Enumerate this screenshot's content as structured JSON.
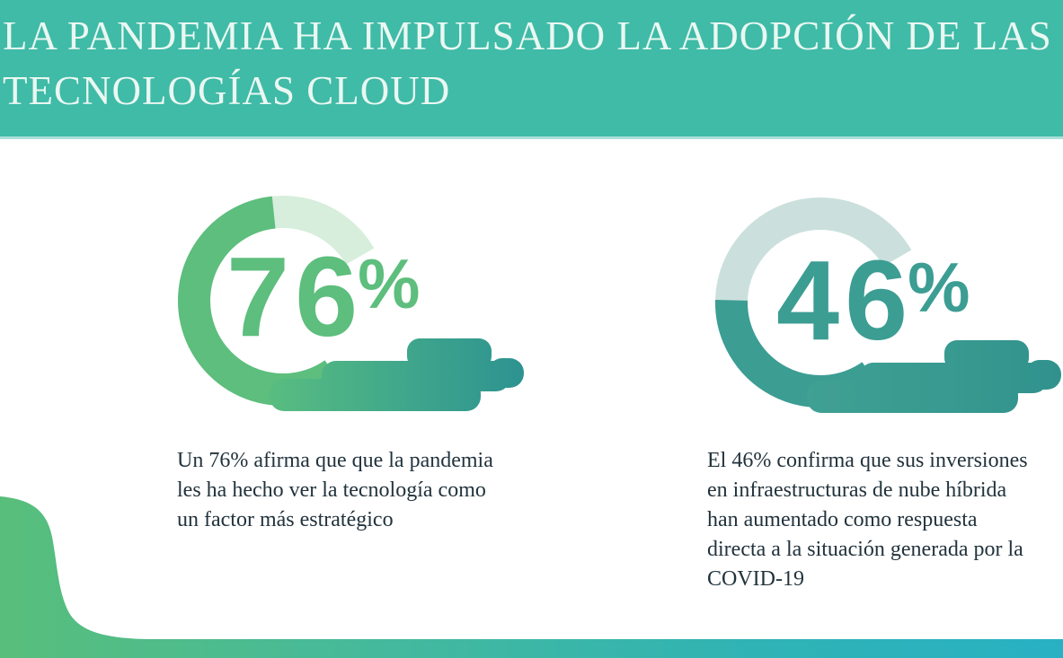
{
  "header": {
    "title_line1": "LA PANDEMIA HA IMPULSADO LA ADOPCIÓN DE LAS",
    "title_line2": "TECNOLOGÍAS CLOUD"
  },
  "charts": [
    {
      "value": 76,
      "value_label": "76",
      "percent_symbol": "%",
      "caption": "Un 76% afirma que que la pandemia\nles ha hecho ver la tecnología como\nun factor más estratégico",
      "colors": {
        "fill": "#5DBE7D",
        "track": "#D7EEDC",
        "cloud_from": "#58BD80",
        "cloud_mid": "#3FA68C",
        "cloud_to": "#2E9390"
      }
    },
    {
      "value": 46,
      "value_label": "46",
      "percent_symbol": "%",
      "caption": "El 46% confirma que sus inversiones\nen infraestructuras de nube híbrida\nhan aumentado como respuesta\ndirecta a la situación generada por la\nCOVID-19",
      "colors": {
        "fill": "#3C9D93",
        "track": "#CBE0DD",
        "cloud_from": "#3FA093",
        "cloud_mid": "#389A90",
        "cloud_to": "#31928D"
      }
    }
  ],
  "chart_data": [
    {
      "type": "pie",
      "subtype": "donut_gauge_with_cloud_icon",
      "label": "76%",
      "categories": [
        "percent",
        "remainder"
      ],
      "values": [
        76,
        24
      ],
      "annotation": "Un 76% afirma que que la pandemia les ha hecho ver la tecnología como un factor más estratégico",
      "legend": "none",
      "gauge_visible_span_deg": 275,
      "gauge_start_deg_clockwise_from_north": 145
    },
    {
      "type": "pie",
      "subtype": "donut_gauge_with_cloud_icon",
      "label": "46%",
      "categories": [
        "percent",
        "remainder"
      ],
      "values": [
        46,
        54
      ],
      "annotation": "El 46% confirma que sus inversiones en infraestructuras de nube híbrida han aumentado como respuesta directa a la situación generada por la COVID-19",
      "legend": "none",
      "gauge_visible_span_deg": 275,
      "gauge_start_deg_clockwise_from_north": 145
    }
  ],
  "palette": {
    "header_bg": "#3FBBA7",
    "header_text": "#EBF7F2",
    "body_text": "#22333D",
    "wave_stops": [
      "#58BE7B",
      "#43B99E",
      "#2FB3B5",
      "#28B1C3"
    ]
  }
}
